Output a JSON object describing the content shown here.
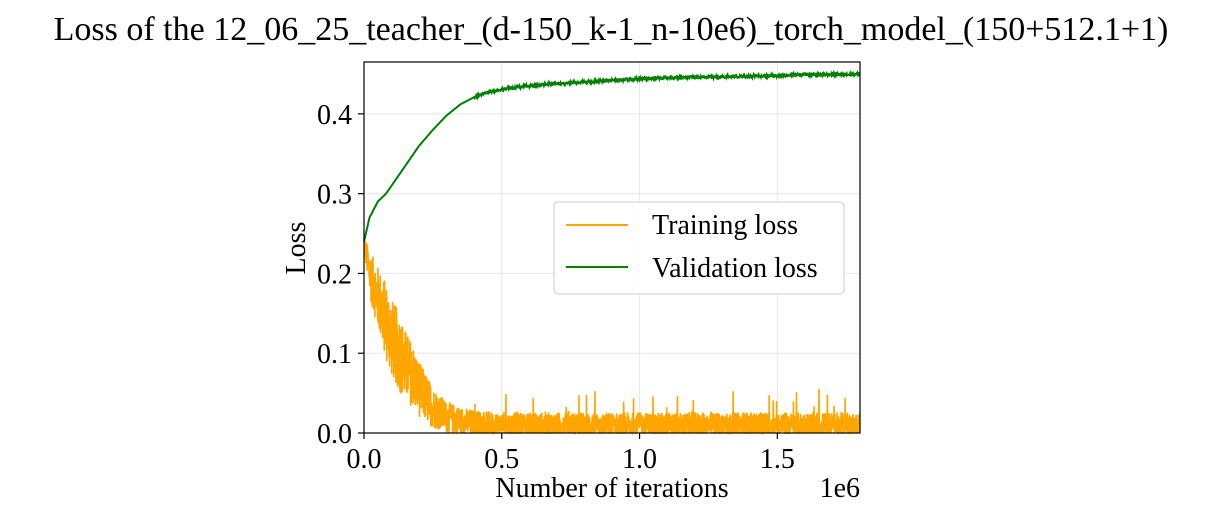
{
  "chart_data": {
    "type": "line",
    "title": "Loss of the 12_06_25_teacher_(d-150_k-1_n-10e6)_torch_model_(150+512.1+1)",
    "xlabel": "Number of iterations",
    "ylabel": "Loss",
    "x_offset_label": "1e6",
    "xlim": [
      0,
      1.8
    ],
    "ylim": [
      0,
      0.465
    ],
    "x_scale_factor": 1000000,
    "xticks": [
      0.0,
      0.5,
      1.0,
      1.5
    ],
    "xtick_labels": [
      "0.0",
      "0.5",
      "1.0",
      "1.5"
    ],
    "yticks": [
      0.0,
      0.1,
      0.2,
      0.3,
      0.4
    ],
    "ytick_labels": [
      "0.0",
      "0.1",
      "0.2",
      "0.3",
      "0.4"
    ],
    "grid": true,
    "legend_placement": "center-right",
    "series": [
      {
        "name": "Training loss",
        "color": "#FFA500",
        "x": [
          0.0,
          0.02,
          0.05,
          0.08,
          0.1,
          0.13,
          0.15,
          0.18,
          0.2,
          0.23,
          0.25,
          0.28,
          0.3,
          0.35,
          0.4,
          0.5,
          0.6,
          0.72,
          0.8,
          0.9,
          1.0,
          1.1,
          1.2,
          1.3,
          1.4,
          1.5,
          1.6,
          1.7,
          1.8
        ],
        "values": [
          0.24,
          0.2,
          0.17,
          0.14,
          0.12,
          0.1,
          0.085,
          0.07,
          0.055,
          0.042,
          0.032,
          0.025,
          0.02,
          0.015,
          0.012,
          0.01,
          0.01,
          0.01,
          0.01,
          0.01,
          0.01,
          0.01,
          0.01,
          0.01,
          0.01,
          0.01,
          0.01,
          0.01,
          0.01
        ],
        "spread": [
          0.01,
          0.03,
          0.04,
          0.05,
          0.05,
          0.05,
          0.045,
          0.04,
          0.035,
          0.03,
          0.026,
          0.022,
          0.02,
          0.018,
          0.017,
          0.016,
          0.016,
          0.016,
          0.016,
          0.016,
          0.016,
          0.016,
          0.016,
          0.016,
          0.016,
          0.016,
          0.016,
          0.016,
          0.016
        ]
      },
      {
        "name": "Validation loss",
        "color": "#008000",
        "x": [
          0.0,
          0.02,
          0.05,
          0.08,
          0.1,
          0.15,
          0.2,
          0.25,
          0.3,
          0.35,
          0.4,
          0.45,
          0.5,
          0.6,
          0.7,
          0.8,
          0.9,
          1.0,
          1.2,
          1.4,
          1.6,
          1.8
        ],
        "values": [
          0.24,
          0.27,
          0.29,
          0.3,
          0.31,
          0.335,
          0.36,
          0.38,
          0.398,
          0.412,
          0.421,
          0.427,
          0.431,
          0.435,
          0.438,
          0.44,
          0.442,
          0.444,
          0.446,
          0.447,
          0.449,
          0.45
        ]
      }
    ]
  }
}
